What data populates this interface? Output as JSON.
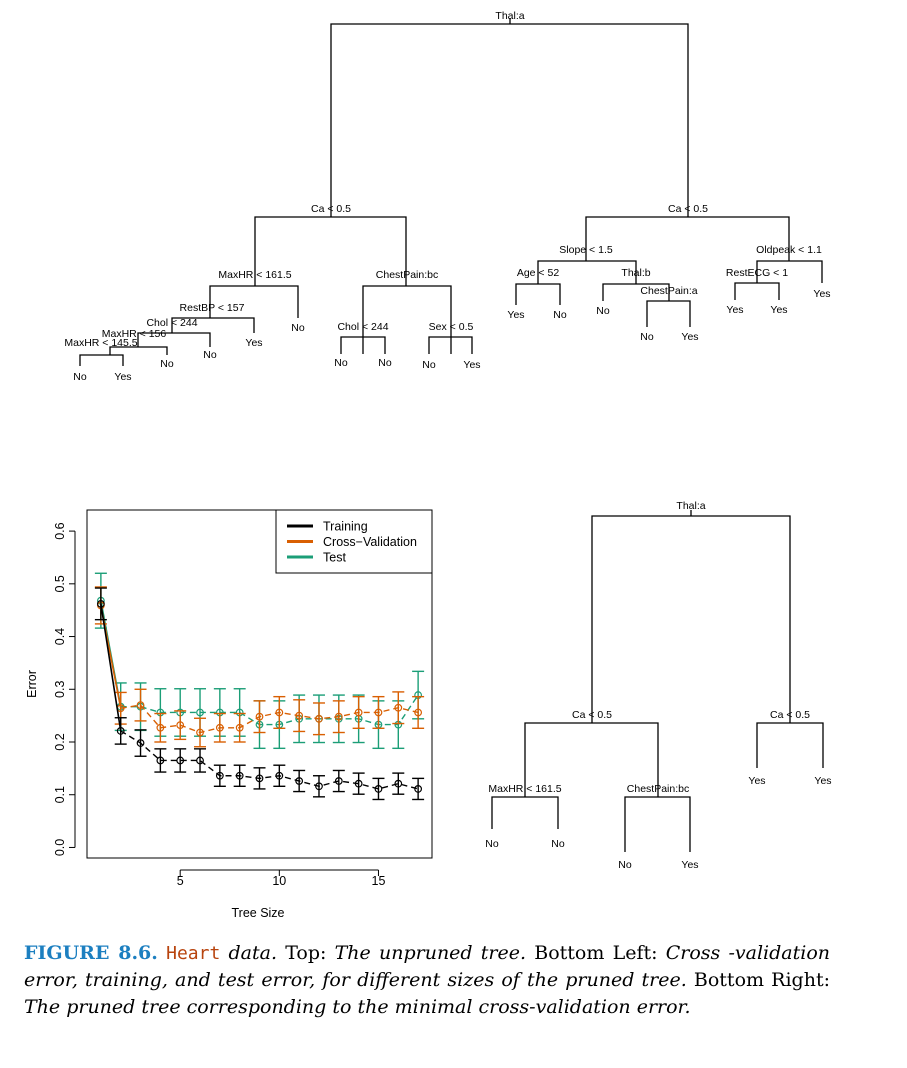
{
  "unpruned_tree": {
    "splits": {
      "root": "Thal:a",
      "l": "Ca < 0.5",
      "ll": "MaxHR < 161.5",
      "lll": "RestBP < 157",
      "llll": "Chol < 244",
      "lllll": "MaxHR < 156",
      "llllll": "MaxHR < 145.5",
      "llr": "ChestPain:bc",
      "llrl": "Chol < 244",
      "llrr": "Sex < 0.5",
      "r": "Ca < 0.5",
      "rl": "Slope < 1.5",
      "rll": "Age < 52",
      "rlr": "Thal:b",
      "rlrr": "ChestPain:a",
      "rr": "Oldpeak < 1.1",
      "rrl": "RestECG < 1"
    },
    "leaves": {
      "llllllL": "No",
      "llllllR": "Yes",
      "lllllR": "No",
      "llllR": "No",
      "lllR": "Yes",
      "llR": "No",
      "llrlL": "No",
      "llrlR": "No",
      "llrrL": "No",
      "llrrR": "Yes",
      "rllL": "Yes",
      "rllR": "No",
      "rlrL": "No",
      "rlrrL": "No",
      "rlrrR": "Yes",
      "rrlL": "Yes",
      "rrlR": "Yes",
      "rrR": "Yes"
    }
  },
  "pruned_tree": {
    "splits": {
      "root": "Thal:a",
      "l": "Ca < 0.5",
      "ll": "MaxHR < 161.5",
      "lr": "ChestPain:bc",
      "r": "Ca < 0.5"
    },
    "leaves": {
      "llL": "No",
      "llR": "No",
      "lrL": "No",
      "lrR": "Yes",
      "rL": "Yes",
      "rR": "Yes"
    }
  },
  "chart_data": {
    "type": "line",
    "xlabel": "Tree Size",
    "ylabel": "Error",
    "xlim": [
      0.3,
      17.7
    ],
    "ylim": [
      -0.02,
      0.64
    ],
    "xticks": [
      5,
      10,
      15
    ],
    "xtick_labels": [
      "5",
      "10",
      "15"
    ],
    "yticks": [
      0.0,
      0.1,
      0.2,
      0.3,
      0.4,
      0.5,
      0.6
    ],
    "ytick_labels": [
      "0.0",
      "0.1",
      "0.2",
      "0.3",
      "0.4",
      "0.5",
      "0.6"
    ],
    "grid": false,
    "legend_position": "top-right",
    "x": [
      1,
      2,
      3,
      4,
      5,
      6,
      7,
      8,
      9,
      10,
      11,
      12,
      13,
      14,
      15,
      16,
      17
    ],
    "series": [
      {
        "name": "Training",
        "color": "#000000",
        "values": [
          0.462,
          0.221,
          0.198,
          0.165,
          0.165,
          0.165,
          0.136,
          0.136,
          0.131,
          0.136,
          0.126,
          0.116,
          0.126,
          0.121,
          0.111,
          0.121,
          0.111
        ],
        "err": [
          0.03,
          0.025,
          0.025,
          0.022,
          0.022,
          0.022,
          0.02,
          0.02,
          0.02,
          0.02,
          0.02,
          0.02,
          0.02,
          0.02,
          0.02,
          0.02,
          0.02
        ]
      },
      {
        "name": "Cross−Validation",
        "color": "#d95f02",
        "values": [
          0.459,
          0.264,
          0.27,
          0.227,
          0.232,
          0.218,
          0.227,
          0.227,
          0.248,
          0.256,
          0.25,
          0.244,
          0.248,
          0.256,
          0.256,
          0.265,
          0.256
        ],
        "err": [
          0.035,
          0.03,
          0.03,
          0.027,
          0.027,
          0.027,
          0.027,
          0.027,
          0.03,
          0.03,
          0.03,
          0.03,
          0.03,
          0.03,
          0.03,
          0.03,
          0.03
        ]
      },
      {
        "name": "Test",
        "color": "#1b9e77",
        "values": [
          0.468,
          0.267,
          0.267,
          0.256,
          0.256,
          0.256,
          0.256,
          0.256,
          0.233,
          0.233,
          0.244,
          0.244,
          0.244,
          0.244,
          0.233,
          0.233,
          0.289
        ],
        "err": [
          0.052,
          0.045,
          0.045,
          0.045,
          0.045,
          0.045,
          0.045,
          0.045,
          0.045,
          0.045,
          0.045,
          0.045,
          0.045,
          0.045,
          0.045,
          0.045,
          0.045
        ]
      }
    ]
  },
  "caption": {
    "label": "FIGURE 8.6.",
    "dataset": "Heart",
    "t1": " data. ",
    "t2": "Top: ",
    "t3": "The unpruned tree.",
    "t4": " Bottom Left: ",
    "t5": "Cross -validation error, training, and test error, for different sizes of the pruned tree.",
    "t6": " Bottom Right: ",
    "t7": "The pruned tree corresponding to the minimal cross-validation error."
  }
}
